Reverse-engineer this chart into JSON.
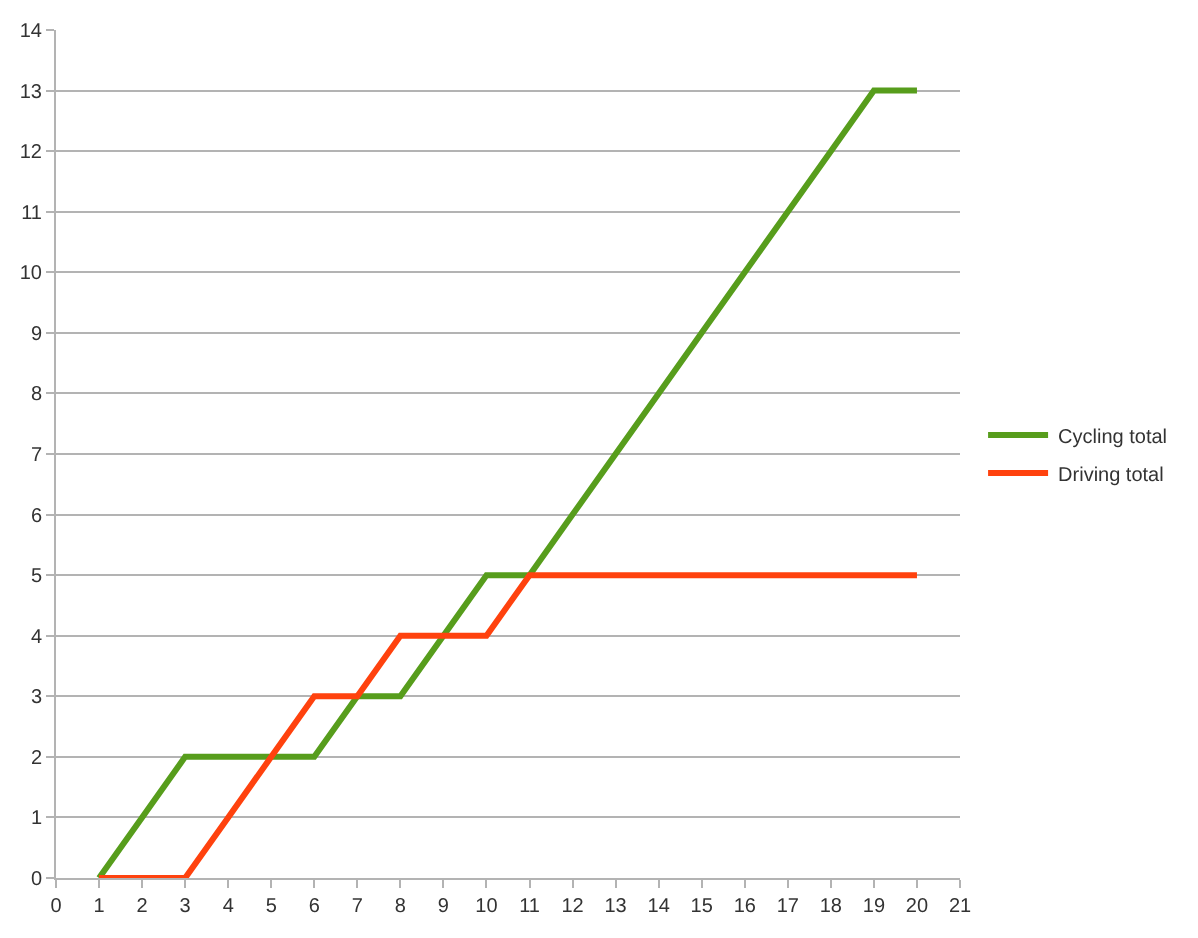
{
  "chart_data": {
    "type": "line",
    "x": [
      1,
      2,
      3,
      4,
      5,
      6,
      7,
      8,
      9,
      10,
      11,
      12,
      13,
      14,
      15,
      16,
      17,
      18,
      19,
      20
    ],
    "series": [
      {
        "name": "Cycling total",
        "color": "#579d1c",
        "values": [
          0,
          1,
          2,
          2,
          2,
          2,
          3,
          3,
          4,
          5,
          5,
          6,
          7,
          8,
          9,
          10,
          11,
          12,
          13,
          13
        ]
      },
      {
        "name": "Driving total",
        "color": "#ff420e",
        "values": [
          0,
          0,
          0,
          1,
          2,
          3,
          3,
          4,
          4,
          4,
          5,
          5,
          5,
          5,
          5,
          5,
          5,
          5,
          5,
          5
        ]
      }
    ],
    "xlim": [
      0,
      21
    ],
    "xticks": [
      0,
      1,
      2,
      3,
      4,
      5,
      6,
      7,
      8,
      9,
      10,
      11,
      12,
      13,
      14,
      15,
      16,
      17,
      18,
      19,
      20,
      21
    ],
    "ylim": [
      0,
      14
    ],
    "yticks": [
      0,
      1,
      2,
      3,
      4,
      5,
      6,
      7,
      8,
      9,
      10,
      11,
      12,
      13,
      14
    ],
    "grid": "y",
    "legend": "right",
    "marker": "none",
    "line_style": "solid"
  }
}
